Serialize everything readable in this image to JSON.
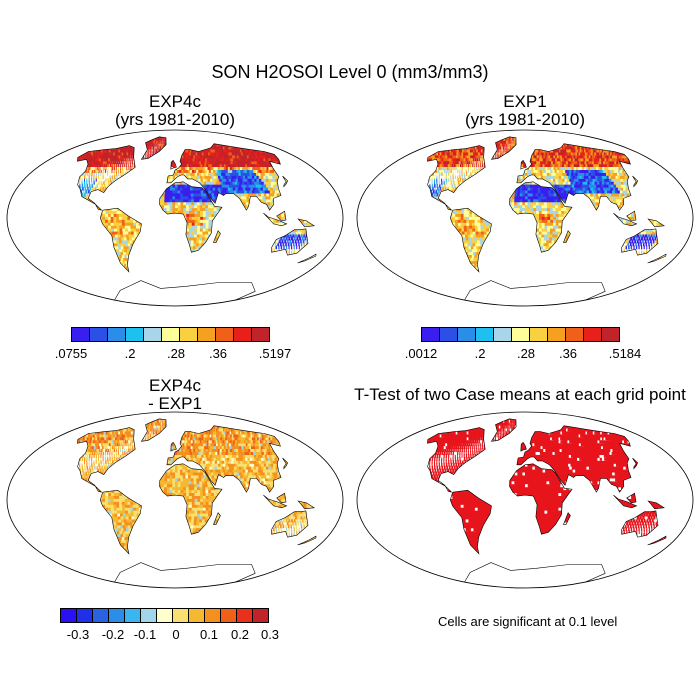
{
  "title": "SON H2OSOI Level 0 (mm3/mm3)",
  "panels": {
    "exp4c": {
      "line1": "EXP4c",
      "line2": "(yrs 1981-2010)"
    },
    "exp1": {
      "line1": "EXP1",
      "line2": "(yrs 1981-2010)"
    },
    "diff": {
      "line1": "EXP4c",
      "line2": "- EXP1"
    },
    "ttest": {
      "line1": "T-Test of two Case means at each grid point"
    }
  },
  "colorbars": {
    "exp4c": {
      "colors": [
        "#3a1ef0",
        "#2c4fe6",
        "#2a8de8",
        "#1ec0f0",
        "#a8d6e8",
        "#ffff99",
        "#f8d040",
        "#f5a020",
        "#f06018",
        "#e8201c",
        "#c0242a"
      ],
      "labels": [
        ".0755",
        ".2",
        ".28",
        ".36",
        ".5197"
      ]
    },
    "exp1": {
      "colors": [
        "#3a1ef0",
        "#2c4fe6",
        "#2a8de8",
        "#1ec0f0",
        "#a8d6e8",
        "#ffff99",
        "#f8d040",
        "#f5a020",
        "#f06018",
        "#e8201c",
        "#c0242a"
      ],
      "labels": [
        ".0012",
        ".2",
        ".28",
        ".36",
        ".5184"
      ]
    },
    "diff": {
      "colors": [
        "#2a10f5",
        "#2030e8",
        "#2a62e0",
        "#2a8de8",
        "#39b5f0",
        "#9fd6ea",
        "#ffffcc",
        "#f8e070",
        "#f5b830",
        "#f59020",
        "#f06018",
        "#e8301c",
        "#c0242a"
      ],
      "labels": [
        "-0.3",
        "-0.2",
        "-0.1",
        "0",
        "0.1",
        "0.2",
        "0.3"
      ]
    }
  },
  "note": "Cells are significant at 0.1 level",
  "legend_colors": {
    "ocean": "#ffffff",
    "coast": "#000000",
    "significant": "#e8141c"
  }
}
